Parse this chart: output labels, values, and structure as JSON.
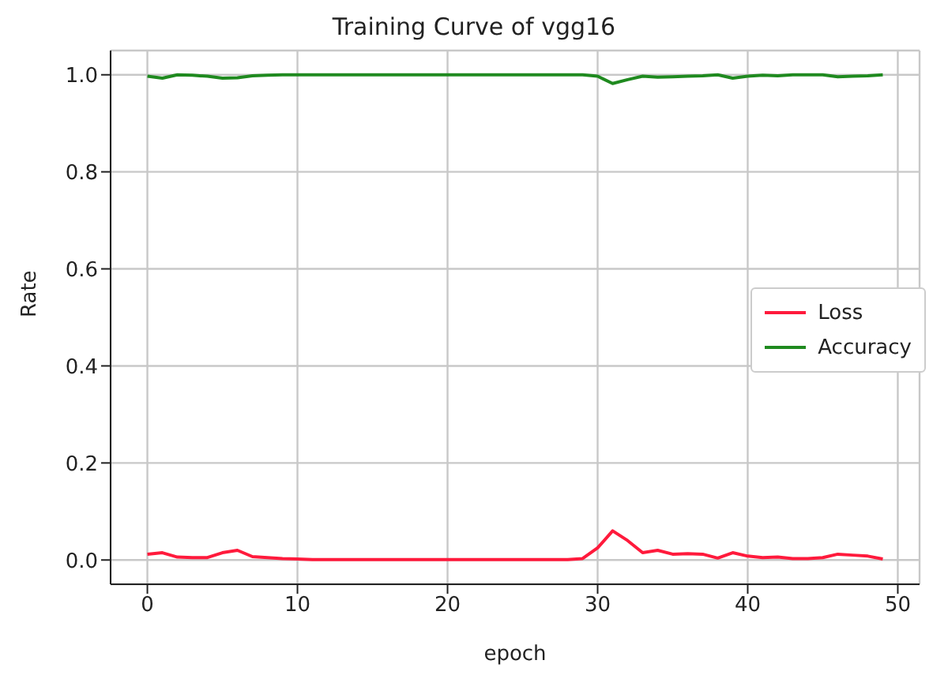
{
  "chart_data": {
    "type": "line",
    "title": "Training Curve of vgg16",
    "xlabel": "epoch",
    "ylabel": "Rate",
    "x": [
      0,
      1,
      2,
      3,
      4,
      5,
      6,
      7,
      8,
      9,
      10,
      11,
      12,
      13,
      14,
      15,
      16,
      17,
      18,
      19,
      20,
      21,
      22,
      23,
      24,
      25,
      26,
      27,
      28,
      29,
      30,
      31,
      32,
      33,
      34,
      35,
      36,
      37,
      38,
      39,
      40,
      41,
      42,
      43,
      44,
      45,
      46,
      47,
      48,
      49
    ],
    "series": [
      {
        "name": "Loss",
        "color": "#ff1a3c",
        "values": [
          0.012,
          0.015,
          0.006,
          0.005,
          0.005,
          0.015,
          0.02,
          0.007,
          0.005,
          0.003,
          0.002,
          0.001,
          0.001,
          0.001,
          0.001,
          0.001,
          0.001,
          0.001,
          0.001,
          0.001,
          0.001,
          0.001,
          0.001,
          0.001,
          0.001,
          0.001,
          0.001,
          0.001,
          0.001,
          0.003,
          0.025,
          0.06,
          0.04,
          0.015,
          0.02,
          0.012,
          0.013,
          0.012,
          0.004,
          0.015,
          0.008,
          0.005,
          0.006,
          0.003,
          0.003,
          0.005,
          0.012,
          0.01,
          0.008,
          0.002
        ]
      },
      {
        "name": "Accuracy",
        "color": "#1f8a1f",
        "values": [
          0.997,
          0.993,
          1.0,
          0.999,
          0.997,
          0.993,
          0.994,
          0.998,
          0.999,
          1.0,
          1.0,
          1.0,
          1.0,
          1.0,
          1.0,
          1.0,
          1.0,
          1.0,
          1.0,
          1.0,
          1.0,
          1.0,
          1.0,
          1.0,
          1.0,
          1.0,
          1.0,
          1.0,
          1.0,
          1.0,
          0.997,
          0.982,
          0.99,
          0.997,
          0.995,
          0.996,
          0.997,
          0.998,
          1.0,
          0.993,
          0.997,
          0.999,
          0.998,
          1.0,
          1.0,
          1.0,
          0.996,
          0.997,
          0.998,
          1.0
        ]
      }
    ],
    "xlim": [
      -2.45,
      51.45
    ],
    "xticks": [
      0,
      10,
      20,
      30,
      40,
      50
    ],
    "ylim": [
      -0.05,
      1.05
    ],
    "yticks": [
      {
        "value": 0,
        "label": "0.0"
      },
      {
        "value": 0.2,
        "label": "0.2"
      },
      {
        "value": 0.4,
        "label": "0.4"
      },
      {
        "value": 0.6,
        "label": "0.6"
      },
      {
        "value": 0.8,
        "label": "0.8"
      },
      {
        "value": 1,
        "label": "1.0"
      }
    ],
    "grid": true,
    "legend": "right",
    "marker": "none",
    "line_style": "solid"
  }
}
